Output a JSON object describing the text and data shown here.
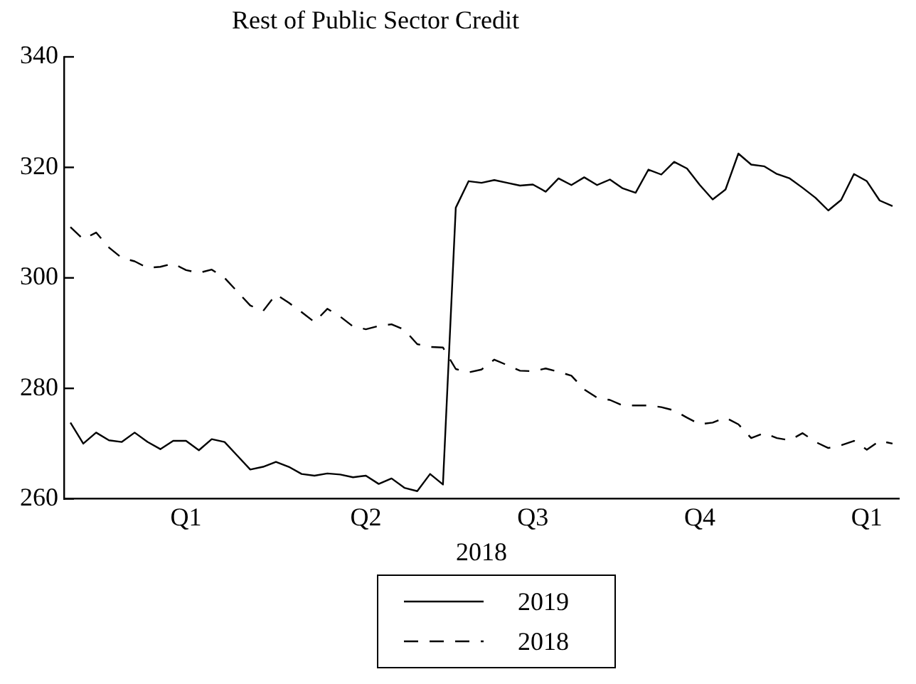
{
  "chart_data": {
    "type": "line",
    "title": "Rest of Public Sector Credit",
    "xlabel": "2018",
    "categories": [
      null,
      null,
      null,
      null,
      null,
      null,
      null,
      null,
      null,
      "Q1",
      null,
      null,
      null,
      null,
      null,
      null,
      null,
      null,
      null,
      null,
      null,
      null,
      null,
      "Q2",
      null,
      null,
      null,
      null,
      null,
      null,
      null,
      null,
      null,
      null,
      null,
      null,
      "Q3",
      null,
      null,
      null,
      null,
      null,
      null,
      null,
      null,
      null,
      null,
      null,
      null,
      "Q4",
      null,
      null,
      null,
      null,
      null,
      null,
      null,
      null,
      null,
      null,
      null,
      null,
      "Q1",
      null,
      null
    ],
    "series": [
      {
        "name": "2019",
        "color": "#000000",
        "line_style": "solid",
        "values": [
          273.8,
          270.0,
          272.0,
          270.6,
          270.3,
          272.0,
          270.3,
          269.0,
          270.5,
          270.5,
          268.8,
          270.8,
          270.3,
          267.8,
          265.3,
          265.8,
          266.7,
          265.8,
          264.5,
          264.2,
          264.6,
          264.4,
          263.9,
          264.2,
          262.7,
          263.7,
          262.0,
          261.4,
          264.5,
          262.6,
          312.7,
          317.5,
          317.2,
          317.7,
          317.2,
          316.7,
          316.9,
          315.6,
          318.0,
          316.8,
          318.2,
          316.8,
          317.8,
          316.2,
          315.4,
          319.6,
          318.7,
          321.0,
          319.8,
          316.8,
          314.2,
          316.0,
          322.5,
          320.5,
          320.2,
          318.8,
          318.0,
          316.3,
          314.5,
          312.2,
          314.1,
          318.8,
          317.5,
          314.0,
          313.0
        ]
      },
      {
        "name": "2018",
        "color": "#000000",
        "line_style": "dashed",
        "values": [
          309.2,
          307.0,
          308.2,
          305.5,
          303.6,
          303.0,
          301.8,
          302.0,
          302.6,
          301.4,
          300.9,
          301.5,
          300.0,
          297.5,
          295.0,
          294.0,
          297.0,
          295.5,
          293.8,
          292.0,
          294.4,
          293.0,
          291.2,
          290.7,
          291.3,
          291.6,
          290.6,
          288.0,
          287.5,
          287.4,
          283.5,
          282.9,
          283.4,
          285.2,
          284.2,
          283.2,
          283.1,
          283.6,
          283.0,
          282.3,
          279.8,
          278.3,
          277.9,
          276.9,
          276.9,
          276.9,
          276.6,
          276.0,
          274.7,
          273.5,
          273.8,
          274.7,
          273.5,
          271.0,
          271.9,
          271.0,
          270.6,
          271.9,
          270.3,
          269.2,
          269.7,
          270.5,
          268.9,
          270.5,
          270.0
        ]
      }
    ],
    "ylim": [
      260,
      340
    ],
    "yticks": [
      260,
      280,
      300,
      320,
      340
    ],
    "grid": false,
    "legend": "bottom",
    "marker": "none"
  }
}
